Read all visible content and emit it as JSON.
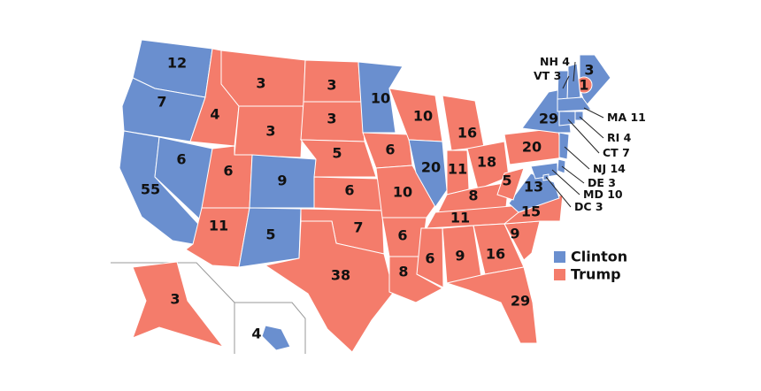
{
  "legend": [
    {
      "label": "Clinton",
      "color": "#6a8fcf"
    },
    {
      "label": "Trump",
      "color": "#f47c6b"
    }
  ],
  "states": [
    {
      "votes": 12,
      "color": "#6a8fcf"
    },
    {
      "votes": 7,
      "color": "#6a8fcf"
    },
    {
      "votes": 55,
      "color": "#6a8fcf"
    },
    {
      "votes": 6,
      "color": "#6a8fcf"
    },
    {
      "votes": 4,
      "color": "#f47c6b"
    },
    {
      "votes": 3,
      "color": "#f47c6b"
    },
    {
      "votes": 3,
      "color": "#f47c6b"
    },
    {
      "votes": 6,
      "color": "#f47c6b"
    },
    {
      "votes": 11,
      "color": "#f47c6b"
    },
    {
      "votes": 9,
      "color": "#6a8fcf"
    },
    {
      "votes": 5,
      "color": "#6a8fcf"
    },
    {
      "votes": 3,
      "color": "#f47c6b"
    },
    {
      "votes": 3,
      "color": "#f47c6b"
    },
    {
      "votes": 5,
      "color": "#f47c6b"
    },
    {
      "votes": 6,
      "color": "#f47c6b"
    },
    {
      "votes": 7,
      "color": "#f47c6b"
    },
    {
      "votes": 38,
      "color": "#f47c6b"
    },
    {
      "votes": 10,
      "color": "#6a8fcf"
    },
    {
      "votes": 6,
      "color": "#f47c6b"
    },
    {
      "votes": 10,
      "color": "#f47c6b"
    },
    {
      "votes": 6,
      "color": "#f47c6b"
    },
    {
      "votes": 8,
      "color": "#f47c6b"
    },
    {
      "votes": 10,
      "color": "#f47c6b"
    },
    {
      "votes": 20,
      "color": "#6a8fcf"
    },
    {
      "votes": 16,
      "color": "#f47c6b"
    },
    {
      "votes": 11,
      "color": "#f47c6b"
    },
    {
      "votes": 18,
      "color": "#f47c6b"
    },
    {
      "votes": 8,
      "color": "#f47c6b"
    },
    {
      "votes": 11,
      "color": "#f47c6b"
    },
    {
      "votes": 6,
      "color": "#f47c6b"
    },
    {
      "votes": 9,
      "color": "#f47c6b"
    },
    {
      "votes": 16,
      "color": "#f47c6b"
    },
    {
      "votes": 29,
      "color": "#f47c6b"
    },
    {
      "votes": 9,
      "color": "#f47c6b"
    },
    {
      "votes": 15,
      "color": "#f47c6b"
    },
    {
      "votes": 13,
      "color": "#6a8fcf"
    },
    {
      "votes": 5,
      "color": "#f47c6b"
    },
    {
      "votes": 20,
      "color": "#f47c6b"
    },
    {
      "votes": 29,
      "color": "#6a8fcf"
    },
    {
      "votes": 3,
      "color": "#6a8fcf"
    },
    {
      "votes": 3,
      "color": "#f47c6b"
    },
    {
      "votes": 4,
      "color": "#6a8fcf"
    }
  ],
  "maine_district": {
    "votes": 1,
    "color": "#f47c6b"
  },
  "callouts": [
    {
      "abbr": "NH",
      "votes": 4,
      "color": "#6a8fcf"
    },
    {
      "abbr": "VT",
      "votes": 3,
      "color": "#6a8fcf"
    },
    {
      "abbr": "MA",
      "votes": 11,
      "color": "#6a8fcf"
    },
    {
      "abbr": "RI",
      "votes": 4,
      "color": "#6a8fcf"
    },
    {
      "abbr": "CT",
      "votes": 7,
      "color": "#6a8fcf"
    },
    {
      "abbr": "NJ",
      "votes": 14,
      "color": "#6a8fcf"
    },
    {
      "abbr": "DE",
      "votes": 3,
      "color": "#6a8fcf"
    },
    {
      "abbr": "MD",
      "votes": 10,
      "color": "#6a8fcf"
    },
    {
      "abbr": "DC",
      "votes": 3,
      "color": "#6a8fcf"
    }
  ]
}
